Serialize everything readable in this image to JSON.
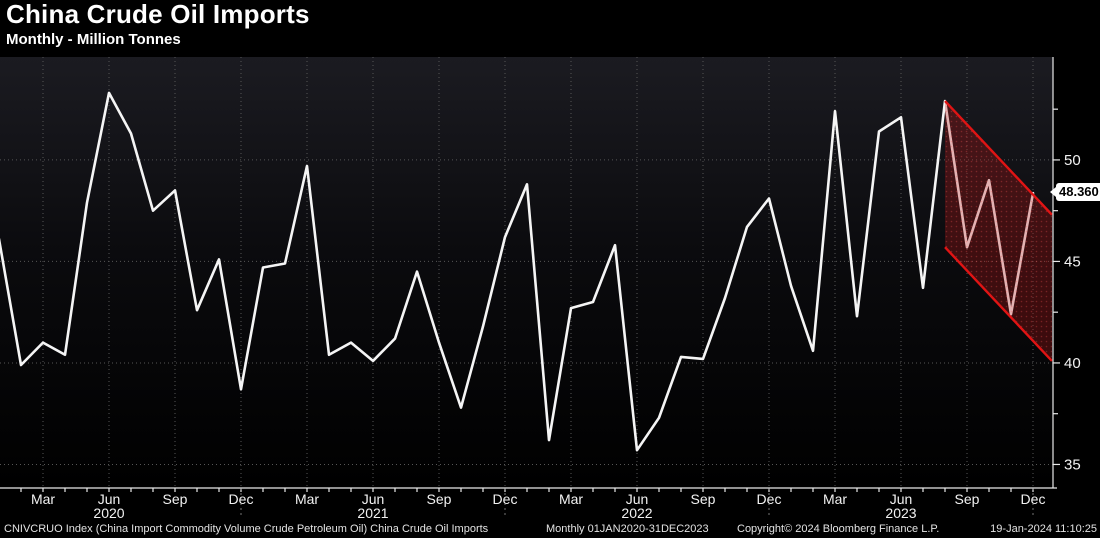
{
  "header": {
    "title": "China Crude Oil Imports",
    "subtitle": "Monthly - Million Tonnes"
  },
  "footer": {
    "left": "CNIVCRUO Index (China Import Commodity Volume Crude Petroleum Oil) China Crude Oil Imports",
    "mid": "Monthly 01JAN2020-31DEC2023",
    "copyright": "Copyright© 2024 Bloomberg Finance L.P.",
    "datetime": "19-Jan-2024 11:10:25"
  },
  "colors": {
    "background": "#000000",
    "line": "#f5f5f5",
    "grid": "#565656",
    "axis": "#e8e8e8",
    "text": "#f2f2f2",
    "channel_line": "#e01414",
    "channel_fill": "rgba(185,22,22,0.30)",
    "channel_dots": "rgba(255,85,85,0.30)",
    "price_tag_bg": "#ffffff",
    "price_tag_text": "#000000"
  },
  "chart_data": {
    "type": "line",
    "title": "China Crude Oil Imports",
    "subtitle": "Monthly - Million Tonnes",
    "x_start": "Jan 2020",
    "x_end": "Dec 2023",
    "x_years": [
      "2020",
      "2021",
      "2022",
      "2023"
    ],
    "x_quarter_labels": [
      "Mar",
      "Jun",
      "Sep",
      "Dec"
    ],
    "y_major_ticks": [
      50,
      45,
      40,
      35
    ],
    "y_minor_ticks": [
      52.5,
      47.5,
      42.5,
      37.5
    ],
    "ylim": [
      33.84,
      55.07
    ],
    "grid": "dotted",
    "legend_position": "none",
    "series": [
      {
        "name": "CNIVCRUO Index",
        "color": "#f5f5f5",
        "values": [
          46.1,
          39.9,
          41.0,
          40.4,
          47.9,
          53.3,
          51.3,
          47.5,
          48.5,
          42.6,
          45.1,
          38.7,
          44.7,
          44.9,
          49.7,
          40.4,
          41.0,
          40.1,
          41.2,
          44.5,
          41.0,
          37.8,
          41.8,
          46.2,
          48.8,
          36.2,
          42.7,
          43.0,
          45.8,
          35.7,
          37.3,
          40.3,
          40.2,
          43.2,
          46.7,
          48.1,
          43.8,
          40.6,
          52.4,
          42.3,
          51.4,
          52.1,
          43.7,
          52.9,
          45.7,
          49.0,
          42.4,
          48.36
        ]
      }
    ],
    "last_value": 48.36,
    "last_value_label": "48.360",
    "annotation_channel": {
      "type": "parallel-channel",
      "start_index": 43,
      "end_index": 47.86,
      "upper_start": 52.9,
      "upper_end": 47.3,
      "lower_start": 45.7,
      "lower_end": 40.1
    }
  }
}
